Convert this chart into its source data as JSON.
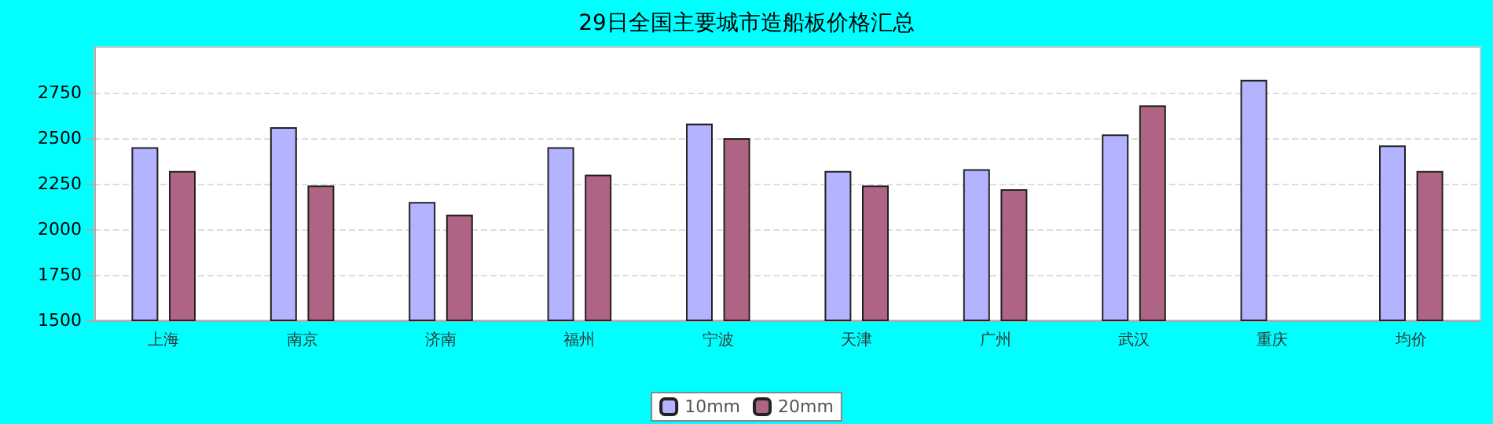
{
  "chart_data": {
    "type": "bar",
    "title": "29日全国主要城市造船板价格汇总",
    "categories": [
      "上海",
      "南京",
      "济南",
      "福州",
      "宁波",
      "天津",
      "广州",
      "武汉",
      "重庆",
      "均价"
    ],
    "series": [
      {
        "name": "10mm",
        "color": "#b3b3ff",
        "values": [
          2450,
          2560,
          2150,
          2450,
          2580,
          2320,
          2330,
          2520,
          2820,
          2460
        ]
      },
      {
        "name": "20mm",
        "color": "#b06485",
        "values": [
          2320,
          2240,
          2080,
          2300,
          2500,
          2240,
          2220,
          2680,
          null,
          2320
        ]
      }
    ],
    "ylim": [
      1500,
      3000
    ],
    "yticks": [
      1500,
      1750,
      2000,
      2250,
      2500,
      2750
    ],
    "grid": "y",
    "legend": "bottom"
  }
}
